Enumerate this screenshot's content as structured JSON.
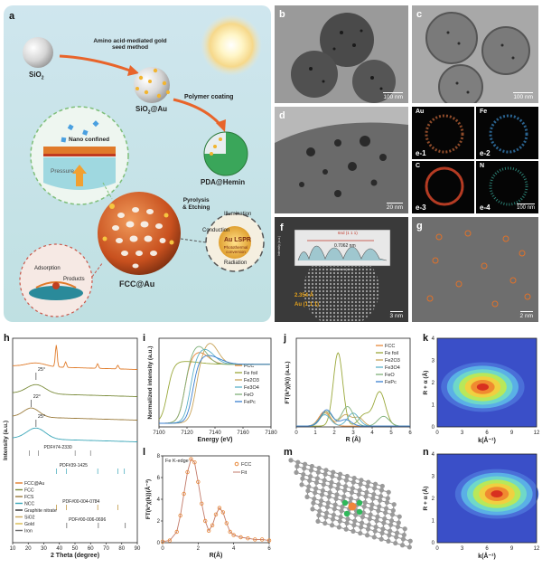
{
  "panels": {
    "a": "a",
    "b": "b",
    "c": "c",
    "d": "d",
    "f": "f",
    "g": "g",
    "h": "h",
    "i": "i",
    "j": "j",
    "k": "k",
    "l": "l",
    "m": "m",
    "n": "n"
  },
  "scheme": {
    "sio2": "SiO",
    "sio2_sub": "2",
    "step1": "Amino acid-mediated gold seed method",
    "sio2au": "SiO",
    "sio2au_sub": "2",
    "sio2au_suffix": "@Au",
    "step2": "Polymer coating",
    "pda": "PDA@Hemin",
    "step3a": "Pyrolysis",
    "step3b": "& Etching",
    "nano": "Nano confined",
    "pressure": "Pressure",
    "illumination": "Illumination",
    "conduction": "Conduction",
    "lspr": "Au LSPR",
    "photothermal": "Photothermal conversion",
    "radiation": "Radiation",
    "adsorption": "Adsorption",
    "products": "Products",
    "fccau": "FCC@Au"
  },
  "micrographs": {
    "b_scale": "100 nm",
    "c_scale": "100 nm",
    "d_scale": "20 nm",
    "e_scale": "100 nm",
    "f_scale": "3 nm",
    "g_scale": "2 nm",
    "e1_el": "Au",
    "e1": "e-1",
    "e2_el": "Fe",
    "e2": "e-2",
    "e3_el": "C",
    "e3": "e-3",
    "e4_el": "N",
    "e4": "e-4",
    "f_d": "2.354 Å",
    "f_plane": "Au (1 1 1)",
    "f_inset": "6nd (1 1 1)",
    "f_inset_val": "0.7062 nm",
    "f_inset_x": "Distance (nm)",
    "f_inset_y": "Intensity (a.u.)"
  },
  "chart_data": [
    {
      "id": "h",
      "type": "line",
      "xlabel": "2 Theta (degree)",
      "ylabel": "Intensity (a.u.)",
      "xlim": [
        10,
        90
      ],
      "xticks": [
        10,
        20,
        30,
        40,
        50,
        60,
        70,
        80,
        90
      ],
      "annotations": [
        "25°",
        "22°",
        "25°",
        "PDF#74-2330",
        "PDF#39-1425",
        "PDF#00-004-0784",
        "PDF#00-006-0696"
      ],
      "legend": [
        "FCC@Au",
        "FCC",
        "FCS",
        "NCC",
        "Graphite nitrate",
        "SiO2",
        "Gold",
        "Iron"
      ],
      "legend_colors": [
        "#e07b2a",
        "#7a8b3a",
        "#9a7a3a",
        "#3aa6b8",
        "#2b2b2b",
        "#c9a55a",
        "#d8b84a",
        "#6a6a6a"
      ]
    },
    {
      "id": "i",
      "type": "line",
      "xlabel": "Energy (eV)",
      "ylabel": "Normalized intensity (a.u.)",
      "xlim": [
        7100,
        7180
      ],
      "xticks": [
        7100,
        7120,
        7140,
        7160,
        7180
      ],
      "series": [
        {
          "name": "FCC",
          "color": "#e8883a"
        },
        {
          "name": "Fe foil",
          "color": "#9aa83a"
        },
        {
          "name": "Fe2O3",
          "color": "#c9a45a"
        },
        {
          "name": "Fe3O4",
          "color": "#5ab0c8"
        },
        {
          "name": "FeO",
          "color": "#7fb07a"
        },
        {
          "name": "FePc",
          "color": "#3a7fd0"
        }
      ]
    },
    {
      "id": "j",
      "type": "line",
      "xlabel": "R (Å)",
      "ylabel": "FT(k³χ(k)) (a.u.)",
      "xlim": [
        0,
        6
      ],
      "xticks": [
        0,
        1,
        2,
        3,
        4,
        5,
        6
      ],
      "series": [
        {
          "name": "FCC",
          "color": "#e8883a"
        },
        {
          "name": "Fe foil",
          "color": "#9aa83a"
        },
        {
          "name": "Fe2O3",
          "color": "#c9a45a"
        },
        {
          "name": "Fe3O4",
          "color": "#5ab0c8"
        },
        {
          "name": "FeO",
          "color": "#7fb07a"
        },
        {
          "name": "FePc",
          "color": "#3a7fd0"
        }
      ]
    },
    {
      "id": "k",
      "type": "heatmap",
      "xlabel": "k(Å⁻¹)",
      "ylabel": "R + α (Å)",
      "xlim": [
        0,
        12
      ],
      "ylim": [
        0,
        4
      ],
      "xticks": [
        0,
        3,
        6,
        9,
        12
      ],
      "yticks": [
        0,
        1,
        2,
        3,
        4
      ],
      "peak": {
        "k": 5.5,
        "R": 1.8
      }
    },
    {
      "id": "l",
      "type": "line",
      "title": "Fe K-edge",
      "xlabel": "R(Å)",
      "ylabel": "FT(k²χ(k))(Å⁻³)",
      "xlim": [
        0,
        6
      ],
      "ylim": [
        0,
        8
      ],
      "xticks": [
        0,
        2,
        4,
        6
      ],
      "yticks": [
        0,
        2,
        4,
        6,
        8
      ],
      "series": [
        {
          "name": "FCC",
          "color": "#e8883a"
        },
        {
          "name": "Fit",
          "color": "#c27a6a"
        }
      ],
      "x": [
        0,
        0.4,
        0.8,
        1.0,
        1.2,
        1.4,
        1.6,
        1.8,
        2.0,
        2.2,
        2.4,
        2.6,
        2.8,
        3.0,
        3.2,
        3.4,
        3.6,
        3.8,
        4.0,
        4.4,
        4.8,
        5.2,
        5.6,
        6.0
      ],
      "y": [
        0.1,
        0.2,
        1.0,
        2.5,
        4.5,
        6.5,
        7.7,
        7.4,
        5.6,
        3.6,
        2.0,
        1.1,
        1.6,
        2.6,
        3.2,
        2.8,
        1.8,
        1.0,
        0.7,
        0.5,
        0.4,
        0.3,
        0.3,
        0.2
      ]
    },
    {
      "id": "n",
      "type": "heatmap",
      "xlabel": "k(Å⁻¹)",
      "ylabel": "R + α (Å)",
      "xlim": [
        0,
        12
      ],
      "ylim": [
        0,
        4
      ],
      "xticks": [
        0,
        3,
        6,
        9,
        12
      ],
      "yticks": [
        0,
        1,
        2,
        3,
        4
      ],
      "peak": {
        "k": 7.2,
        "R": 2.2
      }
    }
  ]
}
